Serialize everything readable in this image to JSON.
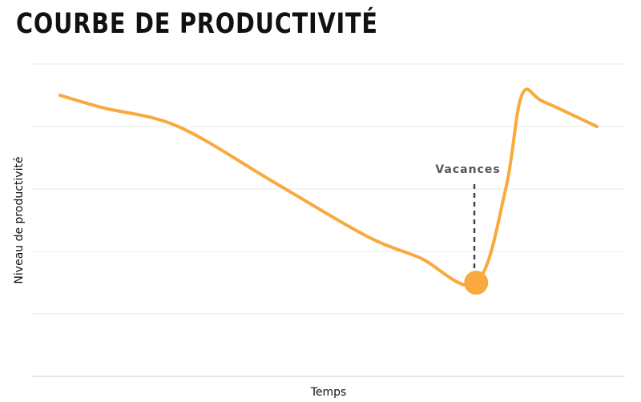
{
  "chart_data": {
    "type": "line",
    "title": "COURBE DE PRODUCTIVITÉ",
    "xlabel": "Temps",
    "ylabel": "Niveau de productivité",
    "grid": true,
    "series": [
      {
        "color": "#F9A93D",
        "points": [
          [
            0.0,
            0.9
          ],
          [
            0.08,
            0.86
          ],
          [
            0.22,
            0.8
          ],
          [
            0.4,
            0.62
          ],
          [
            0.57,
            0.45
          ],
          [
            0.67,
            0.38
          ],
          [
            0.775,
            0.3
          ],
          [
            0.83,
            0.6
          ],
          [
            0.86,
            0.9
          ],
          [
            0.9,
            0.88
          ],
          [
            1.0,
            0.8
          ]
        ]
      }
    ],
    "annotations": [
      {
        "label": "Vacances",
        "x": 0.775,
        "y": 0.3,
        "marker_color": "#F9A93D"
      }
    ],
    "xlim": [
      0,
      1
    ],
    "ylim": [
      0,
      1
    ]
  }
}
